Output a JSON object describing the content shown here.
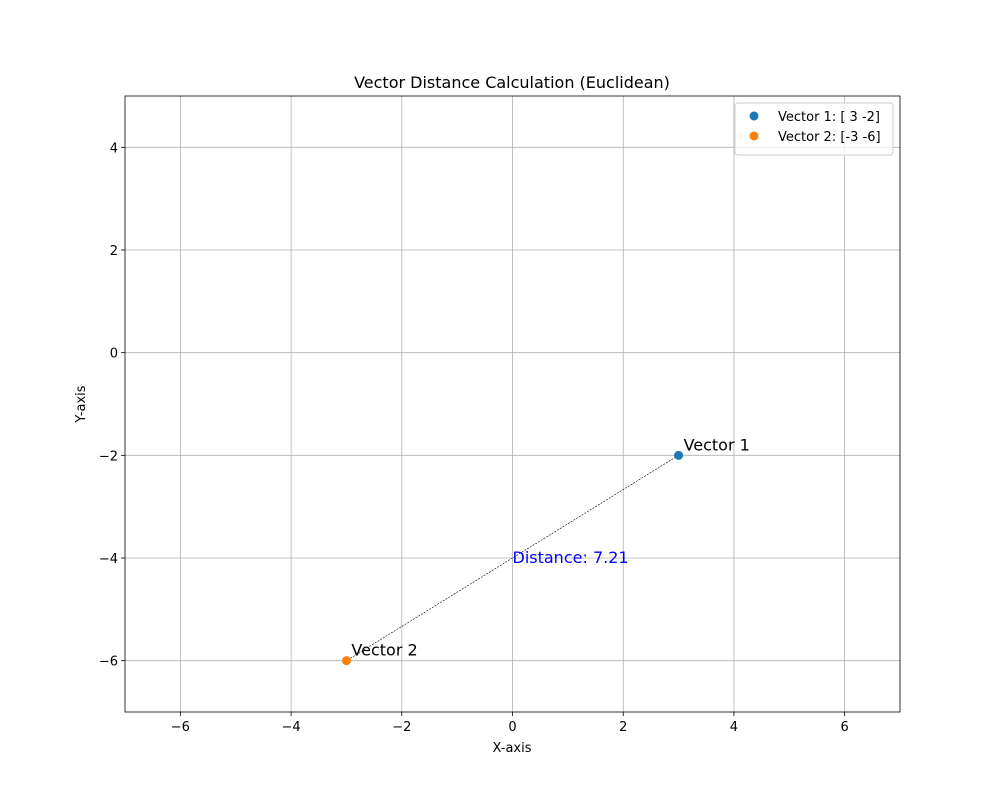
{
  "chart_data": {
    "type": "scatter",
    "title": "Vector Distance Calculation (Euclidean)",
    "xlabel": "X-axis",
    "ylabel": "Y-axis",
    "xlim": [
      -7,
      7
    ],
    "ylim": [
      -7,
      5
    ],
    "xticks": [
      {
        "value": -6,
        "label": "−6"
      },
      {
        "value": -4,
        "label": "−4"
      },
      {
        "value": -2,
        "label": "−2"
      },
      0,
      2,
      4,
      6
    ],
    "yticks": [
      {
        "value": -6,
        "label": "−6"
      },
      {
        "value": -4,
        "label": "−4"
      },
      {
        "value": -2,
        "label": "−2"
      },
      0,
      2,
      4
    ],
    "grid": true,
    "legend": "upper right",
    "series": [
      {
        "name": "Vector 1: [ 3 -2]",
        "color": "#1f77b4",
        "x": [
          3
        ],
        "values": [
          -2
        ],
        "labels": [
          "Vector 1"
        ]
      },
      {
        "name": "Vector 2: [-3 -6]",
        "color": "#ff7f0e",
        "x": [
          -3
        ],
        "values": [
          -6
        ],
        "labels": [
          "Vector 2"
        ]
      }
    ],
    "annotations": [
      {
        "text": "Distance: 7.21",
        "color": "blue"
      }
    ]
  }
}
